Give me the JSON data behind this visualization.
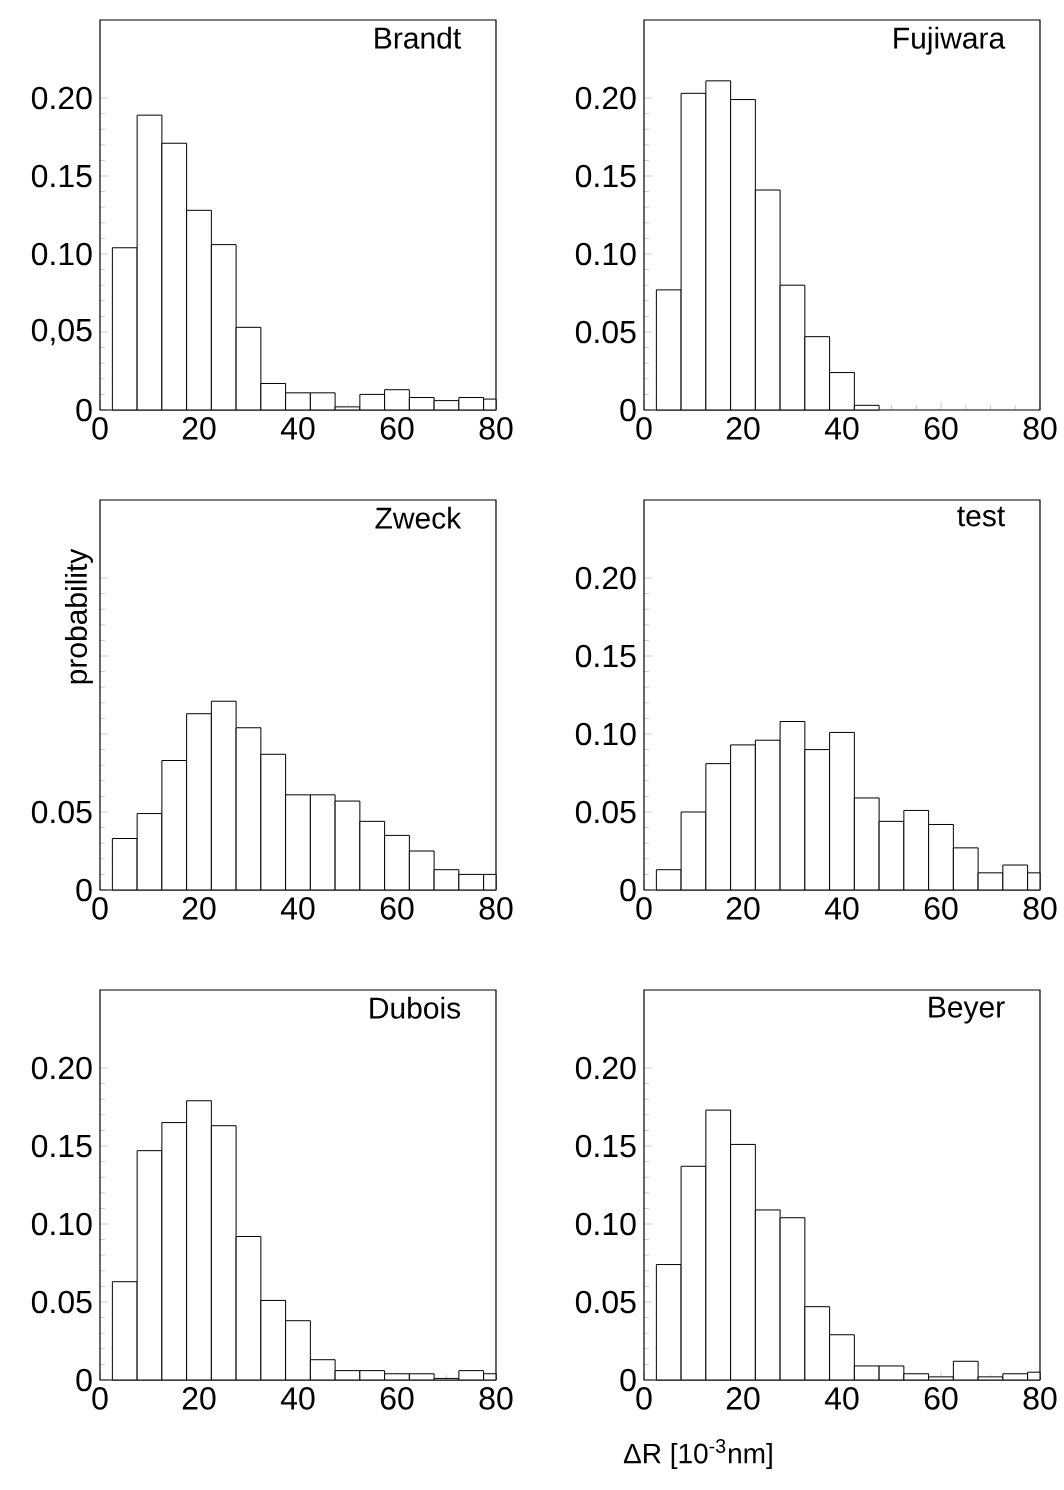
{
  "chart_data": [
    {
      "type": "histogram",
      "title": "Brandt",
      "color": "#ffffff",
      "bins": [
        2.5,
        7.5,
        12.5,
        17.5,
        22.5,
        27.5,
        32.5,
        37.5,
        42.5,
        47.5,
        52.5,
        57.5,
        62.5,
        67.5,
        72.5,
        77.5,
        80
      ],
      "values": [
        0.104,
        0.189,
        0.171,
        0.128,
        0.106,
        0.053,
        0.017,
        0.011,
        0.011,
        0.002,
        0.01,
        0.013,
        0.008,
        0.006,
        0.008,
        0.007
      ],
      "xlim": [
        0,
        80
      ],
      "ylim": [
        0,
        0.25
      ],
      "xticks": [
        0,
        20,
        40,
        60,
        80
      ],
      "yticks": [
        0,
        {
          "value": 0.05,
          "label": "0,05"
        },
        {
          "value": 0.1,
          "label": "0.10"
        },
        0.15,
        {
          "value": 0.2,
          "label": "0.20"
        }
      ]
    },
    {
      "type": "histogram",
      "title": "Fujiwara",
      "color": "#ffffff",
      "bins": [
        2.5,
        7.5,
        12.5,
        17.5,
        22.5,
        27.5,
        32.5,
        37.5,
        42.5,
        47.5
      ],
      "values": [
        0.077,
        0.203,
        0.211,
        0.199,
        0.141,
        0.08,
        0.047,
        0.024,
        0.003
      ],
      "xlim": [
        0,
        80
      ],
      "ylim": [
        0,
        0.25
      ],
      "xticks": [
        0,
        20,
        40,
        60,
        80
      ],
      "yticks": [
        0,
        0.05,
        {
          "value": 0.1,
          "label": "0.10"
        },
        0.15,
        {
          "value": 0.2,
          "label": "0.20"
        }
      ]
    },
    {
      "type": "histogram",
      "title": "Zweck",
      "ylabel": "probability",
      "color": "#ffffff",
      "bins": [
        2.5,
        7.5,
        12.5,
        17.5,
        22.5,
        27.5,
        32.5,
        37.5,
        42.5,
        47.5,
        52.5,
        57.5,
        62.5,
        67.5,
        72.5,
        77.5,
        80
      ],
      "values": [
        0.033,
        0.049,
        0.083,
        0.113,
        0.121,
        0.104,
        0.087,
        0.061,
        0.061,
        0.057,
        0.044,
        0.035,
        0.025,
        0.013,
        0.01,
        0.01
      ],
      "xlim": [
        0,
        80
      ],
      "ylim": [
        0,
        0.25
      ],
      "xticks": [
        0,
        20,
        40,
        60,
        80
      ],
      "yticks": [
        0,
        0.05,
        {
          "value": 0.1,
          "label": null
        },
        {
          "value": 0.15,
          "label": null
        },
        {
          "value": 0.2,
          "label": null
        }
      ]
    },
    {
      "type": "histogram",
      "title": "test",
      "color": "#ffffff",
      "bins": [
        2.5,
        7.5,
        12.5,
        17.5,
        22.5,
        27.5,
        32.5,
        37.5,
        42.5,
        47.5,
        52.5,
        57.5,
        62.5,
        67.5,
        72.5,
        77.5,
        80
      ],
      "values": [
        0.013,
        0.05,
        0.081,
        0.093,
        0.096,
        0.108,
        0.09,
        0.101,
        0.059,
        0.044,
        0.051,
        0.042,
        0.027,
        0.011,
        0.016,
        0.011
      ],
      "xlim": [
        0,
        80
      ],
      "ylim": [
        0,
        0.25
      ],
      "xticks": [
        0,
        20,
        40,
        60,
        80
      ],
      "yticks": [
        0,
        0.05,
        {
          "value": 0.1,
          "label": "0.10"
        },
        0.15,
        {
          "value": 0.2,
          "label": "0.20"
        }
      ]
    },
    {
      "type": "histogram",
      "title": "Dubois",
      "color": "#ffffff",
      "bins": [
        2.5,
        7.5,
        12.5,
        17.5,
        22.5,
        27.5,
        32.5,
        37.5,
        42.5,
        47.5,
        52.5,
        57.5,
        62.5,
        67.5,
        72.5,
        77.5,
        80
      ],
      "values": [
        0.063,
        0.147,
        0.165,
        0.179,
        0.163,
        0.092,
        0.051,
        0.038,
        0.013,
        0.006,
        0.006,
        0.004,
        0.004,
        0.001,
        0.006,
        0.004
      ],
      "xlim": [
        0,
        80
      ],
      "ylim": [
        0,
        0.25
      ],
      "xticks": [
        0,
        20,
        40,
        60,
        80
      ],
      "yticks": [
        0,
        0.05,
        {
          "value": 0.1,
          "label": "0.10"
        },
        0.15,
        {
          "value": 0.2,
          "label": "0.20"
        }
      ]
    },
    {
      "type": "histogram",
      "title": "Beyer",
      "xlabel": "ΔR  [10$^{-3}$nm]",
      "color": "#ffffff",
      "bins": [
        2.5,
        7.5,
        12.5,
        17.5,
        22.5,
        27.5,
        32.5,
        37.5,
        42.5,
        47.5,
        52.5,
        57.5,
        62.5,
        67.5,
        72.5,
        77.5,
        80
      ],
      "values": [
        0.074,
        0.137,
        0.173,
        0.151,
        0.109,
        0.104,
        0.047,
        0.029,
        0.009,
        0.009,
        0.004,
        0.002,
        0.012,
        0.002,
        0.004,
        0.005
      ],
      "xlim": [
        0,
        80
      ],
      "ylim": [
        0,
        0.25
      ],
      "xticks": [
        0,
        20,
        40,
        60,
        80
      ],
      "yticks": [
        0,
        0.05,
        {
          "value": 0.1,
          "label": "0.10"
        },
        0.15,
        {
          "value": 0.2,
          "label": "0.20"
        }
      ]
    }
  ]
}
